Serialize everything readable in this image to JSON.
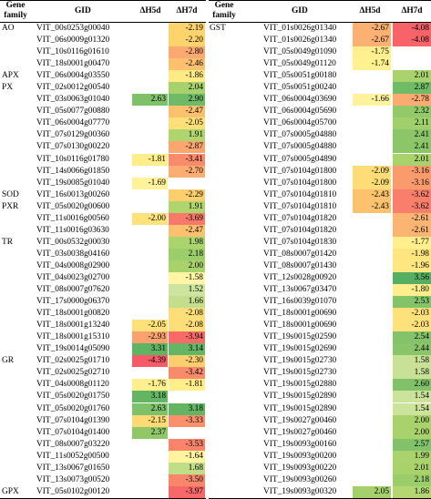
{
  "headers": {
    "gene_family": "Gene family",
    "gid": "GID",
    "h5": "ΔH5d",
    "h7": "ΔH7d"
  },
  "left_rows": [
    {
      "f": "AO",
      "g": "VIT_00s0253g00040",
      "a": "",
      "b": "-2.19",
      "ca": "",
      "cb": "#fdd46b"
    },
    {
      "f": "",
      "g": "VIT_06s0009g01320",
      "a": "",
      "b": "-2.20",
      "ca": "",
      "cb": "#fdd46b"
    },
    {
      "f": "",
      "g": "VIT_10s0116g01610",
      "a": "",
      "b": "-2.80",
      "ca": "",
      "cb": "#fba871"
    },
    {
      "f": "",
      "g": "VIT_18s0001g00470",
      "a": "",
      "b": "-2.46",
      "ca": "",
      "cb": "#fcc06e"
    },
    {
      "f": "APX",
      "g": "VIT_06s0004g03550",
      "a": "",
      "b": "-1.86",
      "ca": "",
      "cb": "#ffeb85"
    },
    {
      "f": "PX",
      "g": "VIT_02s0012g00540",
      "a": "",
      "b": "2.04",
      "ca": "",
      "cb": "#a6d16c"
    },
    {
      "f": "",
      "g": "VIT_03s0063g01040",
      "a": "2.63",
      "b": "2.90",
      "ca": "#7fc06a",
      "cb": "#6fba66"
    },
    {
      "f": "",
      "g": "VIT_05s0077g00880",
      "a": "",
      "b": "-2.47",
      "ca": "",
      "cb": "#fcc06e"
    },
    {
      "f": "",
      "g": "VIT_06s0004g07770",
      "a": "",
      "b": "-2.05",
      "ca": "",
      "cb": "#fee07a"
    },
    {
      "f": "",
      "g": "VIT_07s0129g00360",
      "a": "",
      "b": "1.91",
      "ca": "",
      "cb": "#b0d56f"
    },
    {
      "f": "",
      "g": "VIT_07s0130g00220",
      "a": "",
      "b": "-2.87",
      "ca": "",
      "cb": "#fba570"
    },
    {
      "f": "",
      "g": "VIT_10s0116g01780",
      "a": "-1.81",
      "b": "-3.41",
      "ca": "#ffee8a",
      "cb": "#f98a6c"
    },
    {
      "f": "",
      "g": "VIT_14s0066g01850",
      "a": "",
      "b": "-2.70",
      "ca": "",
      "cb": "#fcae72"
    },
    {
      "f": "",
      "g": "VIT_19s0085g01040",
      "a": "-1.69",
      "b": "",
      "ca": "#fff299",
      "cb": ""
    },
    {
      "f": "SOD",
      "g": "VIT_16s0013g00260",
      "a": "",
      "b": "-2.29",
      "ca": "",
      "cb": "#fdce6d"
    },
    {
      "f": "PXR",
      "g": "VIT_05s0020g00600",
      "a": "",
      "b": "1.91",
      "ca": "",
      "cb": "#b0d56f"
    },
    {
      "f": "",
      "g": "VIT_11s0016g00560",
      "a": "-2.00",
      "b": "-3.69",
      "ca": "#fee27c",
      "cb": "#f8796a"
    },
    {
      "f": "",
      "g": "VIT_11s0016g03630",
      "a": "",
      "b": "-2.47",
      "ca": "",
      "cb": "#fcc06e"
    },
    {
      "f": "TR",
      "g": "VIT_00s0532g00030",
      "a": "",
      "b": "1.98",
      "ca": "",
      "cb": "#abd36e"
    },
    {
      "f": "",
      "g": "VIT_03s0038g04160",
      "a": "",
      "b": "2.18",
      "ca": "",
      "cb": "#9ccd6b"
    },
    {
      "f": "",
      "g": "VIT_04s0008g02900",
      "a": "",
      "b": "2.00",
      "ca": "",
      "cb": "#a9d26d"
    },
    {
      "f": "",
      "g": "VIT_04s0023g02700",
      "a": "",
      "b": "-1.58",
      "ca": "",
      "cb": "#fff5a5"
    },
    {
      "f": "",
      "g": "VIT_08s0007g07620",
      "a": "",
      "b": "1.52",
      "ca": "",
      "cb": "#cde3a0"
    },
    {
      "f": "",
      "g": "VIT_17s0000g06370",
      "a": "",
      "b": "1.66",
      "ca": "",
      "cb": "#c3de8d"
    },
    {
      "f": "",
      "g": "VIT_18s0001g00820",
      "a": "",
      "b": "-2.08",
      "ca": "",
      "cb": "#fede78"
    },
    {
      "f": "",
      "g": "VIT_18s0001g13240",
      "a": "-2.05",
      "b": "-2.08",
      "ca": "#fee07a",
      "cb": "#fede78"
    },
    {
      "f": "",
      "g": "VIT_18s0001g15310",
      "a": "-2.93",
      "b": "-3.94",
      "ca": "#fba16f",
      "cb": "#f86a68"
    },
    {
      "f": "",
      "g": "VIT_19s0014g05090",
      "a": "3.31",
      "b": "3.14",
      "ca": "#5fb363",
      "cb": "#65b664"
    },
    {
      "f": "GR",
      "g": "VIT_02s0025g01710",
      "a": "-4.39",
      "b": "-2.30",
      "ca": "#f65a68",
      "cb": "#fdce6d"
    },
    {
      "f": "",
      "g": "VIT_02s0025g02710",
      "a": "",
      "b": "-3.42",
      "ca": "",
      "cb": "#f98a6c"
    },
    {
      "f": "",
      "g": "VIT_04s0008g01120",
      "a": "-1.76",
      "b": "-1.81",
      "ca": "#ffef8e",
      "cb": "#ffee8a"
    },
    {
      "f": "",
      "g": "VIT_05s0020g01750",
      "a": "3.18",
      "b": "",
      "ca": "#63b564",
      "cb": ""
    },
    {
      "f": "",
      "g": "VIT_05s0020g01760",
      "a": "2.63",
      "b": "3.18",
      "ca": "#7fc06a",
      "cb": "#63b564"
    },
    {
      "f": "",
      "g": "VIT_07s0104g01390",
      "a": "-2.15",
      "b": "-3.33",
      "ca": "#fed974",
      "cb": "#fa8f6c"
    },
    {
      "f": "",
      "g": "VIT_07s0104g01400",
      "a": "2.37",
      "b": "",
      "ca": "#8fc769",
      "cb": ""
    },
    {
      "f": "",
      "g": "VIT_08s0007g03220",
      "a": "",
      "b": "-3.53",
      "ca": "",
      "cb": "#f9846b"
    },
    {
      "f": "",
      "g": "VIT_11s0052g00500",
      "a": "",
      "b": "-1.64",
      "ca": "",
      "cb": "#fff3a0"
    },
    {
      "f": "",
      "g": "VIT_13s0067g01650",
      "a": "",
      "b": "1.68",
      "ca": "",
      "cb": "#c0dd88"
    },
    {
      "f": "",
      "g": "VIT_13s0073g00520",
      "a": "",
      "b": "-3.50",
      "ca": "",
      "cb": "#f9856b"
    },
    {
      "f": "GPX",
      "g": "VIT_05s0102g00120",
      "a": "",
      "b": "-3.97",
      "ca": "",
      "cb": "#f86868"
    }
  ],
  "right_rows": [
    {
      "f": "GST",
      "g": "VIT_01s0026g01340",
      "a": "-2.67",
      "b": "-4.08",
      "ca": "#fcb072",
      "cb": "#f76368"
    },
    {
      "f": "",
      "g": "VIT_01s0026g01340",
      "a": "-2.67",
      "b": "-4.08",
      "ca": "#fcb072",
      "cb": "#f76368"
    },
    {
      "f": "",
      "g": "VIT_05s0049g01090",
      "a": "-1.75",
      "b": "",
      "ca": "#ffef8e",
      "cb": ""
    },
    {
      "f": "",
      "g": "VIT_05s0049g01120",
      "a": "-1.74",
      "b": "",
      "ca": "#fff090",
      "cb": ""
    },
    {
      "f": "",
      "g": "VIT_05s0051g00180",
      "a": "",
      "b": "2.01",
      "ca": "",
      "cb": "#a9d26d"
    },
    {
      "f": "",
      "g": "VIT_05s0051g00240",
      "a": "",
      "b": "2.87",
      "ca": "",
      "cb": "#70bb66"
    },
    {
      "f": "",
      "g": "VIT_06s0004g03690",
      "a": "-1.66",
      "b": "-2.78",
      "ca": "#fff29c",
      "cb": "#fbaa71"
    },
    {
      "f": "",
      "g": "VIT_06s0004g05690",
      "a": "",
      "b": "2.32",
      "ca": "",
      "cb": "#92c969"
    },
    {
      "f": "",
      "g": "VIT_06s0004g05700",
      "a": "",
      "b": "2.11",
      "ca": "",
      "cb": "#a0cf6b"
    },
    {
      "f": "",
      "g": "VIT_07s0005g04880",
      "a": "",
      "b": "2.41",
      "ca": "",
      "cb": "#8cc669"
    },
    {
      "f": "",
      "g": "VIT_07s0005g04880",
      "a": "",
      "b": "2.41",
      "ca": "",
      "cb": "#8cc669"
    },
    {
      "f": "",
      "g": "VIT_07s0005g04890",
      "a": "",
      "b": "2.01",
      "ca": "",
      "cb": "#a9d26d"
    },
    {
      "f": "",
      "g": "VIT_07s0104g01800",
      "a": "-2.09",
      "b": "-3.16",
      "ca": "#fedc77",
      "cb": "#fa9b6e"
    },
    {
      "f": "",
      "g": "VIT_07s0104g01800",
      "a": "-2.09",
      "b": "-3.16",
      "ca": "#fedc77",
      "cb": "#fa9b6e"
    },
    {
      "f": "",
      "g": "VIT_07s0104g01810",
      "a": "-2.43",
      "b": "-3.62",
      "ca": "#fcc26e",
      "cb": "#f97e6b"
    },
    {
      "f": "",
      "g": "VIT_07s0104g01810",
      "a": "-2.43",
      "b": "-3.62",
      "ca": "#fcc26e",
      "cb": "#f97e6b"
    },
    {
      "f": "",
      "g": "VIT_07s0104g01820",
      "a": "",
      "b": "-2.61",
      "ca": "",
      "cb": "#fcb472"
    },
    {
      "f": "",
      "g": "VIT_07s0104g01820",
      "a": "",
      "b": "-2.61",
      "ca": "",
      "cb": "#fcb472"
    },
    {
      "f": "",
      "g": "VIT_07s0104g01830",
      "a": "",
      "b": "-1.77",
      "ca": "",
      "cb": "#ffef8d"
    },
    {
      "f": "",
      "g": "VIT_08s0007g01420",
      "a": "",
      "b": "-1.98",
      "ca": "",
      "cb": "#fee57f"
    },
    {
      "f": "",
      "g": "VIT_08s0007g01430",
      "a": "",
      "b": "-1.96",
      "ca": "",
      "cb": "#fee680"
    },
    {
      "f": "",
      "g": "VIT_12s0028g00920",
      "a": "",
      "b": "3.56",
      "ca": "",
      "cb": "#55ae61"
    },
    {
      "f": "",
      "g": "VIT_13s0067g03470",
      "a": "",
      "b": "-1.80",
      "ca": "",
      "cb": "#ffee8b"
    },
    {
      "f": "",
      "g": "VIT_16s0039g01070",
      "a": "",
      "b": "2.53",
      "ca": "",
      "cb": "#85c36a"
    },
    {
      "f": "",
      "g": "VIT_18s0001g00690",
      "a": "",
      "b": "-2.03",
      "ca": "",
      "cb": "#fee17b"
    },
    {
      "f": "",
      "g": "VIT_18s0001g00690",
      "a": "",
      "b": "-2.03",
      "ca": "",
      "cb": "#fee17b"
    },
    {
      "f": "",
      "g": "VIT_19s0015g02590",
      "a": "",
      "b": "2.54",
      "ca": "",
      "cb": "#84c36a"
    },
    {
      "f": "",
      "g": "VIT_19s0015g02690",
      "a": "",
      "b": "2.44",
      "ca": "",
      "cb": "#8ac569"
    },
    {
      "f": "",
      "g": "VIT_19s0015g02730",
      "a": "",
      "b": "1.58",
      "ca": "",
      "cb": "#c9e197"
    },
    {
      "f": "",
      "g": "VIT_19s0015g02730",
      "a": "",
      "b": "1.58",
      "ca": "",
      "cb": "#c9e197"
    },
    {
      "f": "",
      "g": "VIT_19s0015g02880",
      "a": "",
      "b": "2.60",
      "ca": "",
      "cb": "#81c16a"
    },
    {
      "f": "",
      "g": "VIT_19s0015g02890",
      "a": "",
      "b": "1.54",
      "ca": "",
      "cb": "#cce39c"
    },
    {
      "f": "",
      "g": "VIT_19s0015g02890",
      "a": "",
      "b": "1.54",
      "ca": "",
      "cb": "#cce39c"
    },
    {
      "f": "",
      "g": "VIT_19s0027g00460",
      "a": "",
      "b": "2.00",
      "ca": "",
      "cb": "#a9d26d"
    },
    {
      "f": "",
      "g": "VIT_19s0027g00460",
      "a": "",
      "b": "2.00",
      "ca": "",
      "cb": "#a9d26d"
    },
    {
      "f": "",
      "g": "VIT_19s0093g00160",
      "a": "",
      "b": "2.57",
      "ca": "",
      "cb": "#82c26a"
    },
    {
      "f": "",
      "g": "VIT_19s0093g00200",
      "a": "",
      "b": "1.99",
      "ca": "",
      "cb": "#aad26d"
    },
    {
      "f": "",
      "g": "VIT_19s0093g00220",
      "a": "",
      "b": "2.01",
      "ca": "",
      "cb": "#a9d26d"
    },
    {
      "f": "",
      "g": "VIT_19s0093g00260",
      "a": "",
      "b": "2.18",
      "ca": "",
      "cb": "#9ccd6b"
    },
    {
      "f": "",
      "g": "VIT_19s0093g00320",
      "a": "2.05",
      "b": "1.86",
      "ca": "#a5d16c",
      "cb": "#b4d673"
    }
  ]
}
